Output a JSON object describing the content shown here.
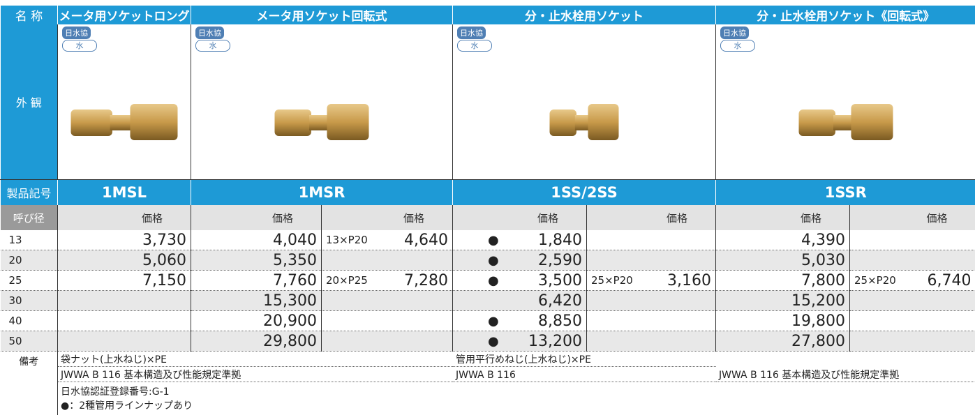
{
  "header": {
    "name_label": "名 称",
    "appearance_label": "外 観",
    "code_label": "製品記号",
    "size_label": "呼び径",
    "remarks_label": "備考"
  },
  "products": [
    {
      "name": "メータ用ソケットロング",
      "badge": "日水協",
      "badge2": "水",
      "code": "1MSL",
      "price_headers": [
        "価格"
      ]
    },
    {
      "name": "メータ用ソケット回転式",
      "badge": "日水協",
      "badge2": "水",
      "code": "1MSR",
      "price_headers": [
        "価格",
        "価格"
      ]
    },
    {
      "name": "分・止水栓用ソケット",
      "badge": "日水協",
      "badge2": "水",
      "code": "1SS/2SS",
      "price_headers": [
        "価格",
        "価格"
      ]
    },
    {
      "name": "分・止水栓用ソケット《回転式》",
      "badge": "日水協",
      "badge2": "水",
      "code": "1SSR",
      "price_headers": [
        "価格",
        "価格"
      ]
    }
  ],
  "rows": [
    {
      "size": "13",
      "msl": "3,730",
      "msr": "4,040",
      "msr_alt_size": "13×P20",
      "msr_alt": "4,640",
      "ss_mark": "●",
      "ss": "1,840",
      "ssr": "4,390"
    },
    {
      "size": "20",
      "msl": "5,060",
      "msr": "5,350",
      "ss_mark": "●",
      "ss": "2,590",
      "ssr": "5,030"
    },
    {
      "size": "25",
      "msl": "7,150",
      "msr": "7,760",
      "msr_alt_size": "20×P25",
      "msr_alt": "7,280",
      "ss_mark": "●",
      "ss": "3,500",
      "ss_alt_size": "25×P20",
      "ss_alt": "3,160",
      "ssr": "7,800",
      "ssr_alt_size": "25×P20",
      "ssr_alt": "6,740"
    },
    {
      "size": "30",
      "msr": "15,300",
      "ss": "6,420",
      "ssr": "15,200"
    },
    {
      "size": "40",
      "msr": "20,900",
      "ss_mark": "●",
      "ss": "8,850",
      "ssr": "19,800"
    },
    {
      "size": "50",
      "msr": "29,800",
      "ss_mark": "●",
      "ss": "13,200",
      "ssr": "27,800"
    }
  ],
  "remarks": {
    "msl_msr": [
      "袋ナット(上水ねじ)×PE",
      "JWWA B 116 基本構造及び性能規定準拠"
    ],
    "ss": [
      "管用平行めねじ(上水ねじ)×PE",
      "JWWA B 116"
    ],
    "ssr": [
      "JWWA B 116 基本構造及び性能規定準拠"
    ],
    "notes": [
      "日水協認証登録番号:G-1",
      "●：2種管用ラインナップあり"
    ]
  }
}
